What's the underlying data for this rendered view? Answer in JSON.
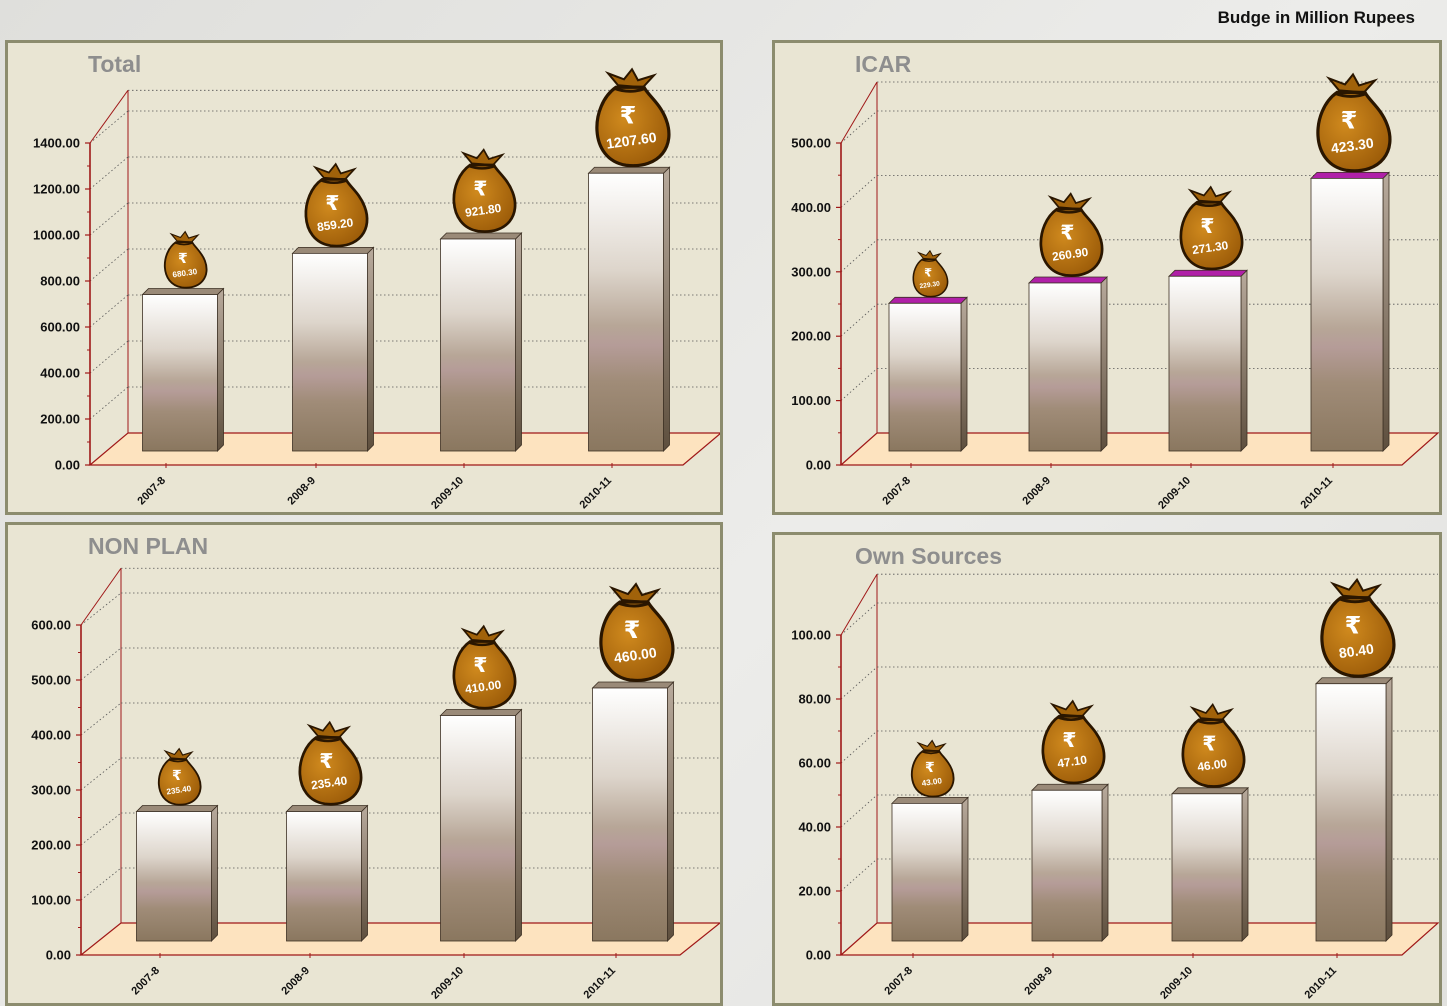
{
  "caption": "Budge in Million Rupees",
  "colors": {
    "panel_bg": "#e9e5d3",
    "frame": "#8c8c6e",
    "axis": "#a01818",
    "floor": "#fde3bf",
    "bag": "#b8720f",
    "bar_top_icar": "#b020a8"
  },
  "icons": [
    "money-bag-icon",
    "rupee-sign"
  ],
  "chart_data": [
    {
      "type": "bar",
      "title": "Total",
      "categories": [
        "2007-8",
        "2008-9",
        "2009-10",
        "2010-11"
      ],
      "values": [
        680.3,
        859.2,
        921.8,
        1207.6
      ],
      "value_labels": [
        "680.30",
        "859.20",
        "921.80",
        "1207.60"
      ],
      "yticks": [
        "0.00",
        "200.00",
        "400.00",
        "600.00",
        "800.00",
        "1000.00",
        "1200.00",
        "1400.00"
      ],
      "ylim": [
        0,
        1400
      ],
      "grid": true
    },
    {
      "type": "bar",
      "title": "ICAR",
      "categories": [
        "2007-8",
        "2008-9",
        "2009-10",
        "2010-11"
      ],
      "values": [
        229.3,
        260.9,
        271.3,
        423.3
      ],
      "value_labels": [
        "229.30",
        "260.90",
        "271.30",
        "423.30"
      ],
      "yticks": [
        "0.00",
        "100.00",
        "200.00",
        "300.00",
        "400.00",
        "500.00"
      ],
      "ylim": [
        0,
        500
      ],
      "grid": true
    },
    {
      "type": "bar",
      "title": "NON PLAN",
      "categories": [
        "2007-8",
        "2008-9",
        "2009-10",
        "2010-11"
      ],
      "values": [
        235.4,
        235.4,
        410.0,
        460.0
      ],
      "value_labels": [
        "235.40",
        "235.40",
        "410.00",
        "460.00"
      ],
      "yticks": [
        "0.00",
        "100.00",
        "200.00",
        "300.00",
        "400.00",
        "500.00",
        "600.00"
      ],
      "ylim": [
        0,
        600
      ],
      "grid": true
    },
    {
      "type": "bar",
      "title": "Own Sources",
      "categories": [
        "2007-8",
        "2008-9",
        "2009-10",
        "2010-11"
      ],
      "values": [
        43.0,
        47.1,
        46.0,
        80.4
      ],
      "value_labels": [
        "43.00",
        "47.10",
        "46.00",
        "80.40"
      ],
      "yticks": [
        "0.00",
        "20.00",
        "40.00",
        "60.00",
        "80.00",
        "100.00"
      ],
      "ylim": [
        0,
        100
      ],
      "grid": true
    }
  ]
}
